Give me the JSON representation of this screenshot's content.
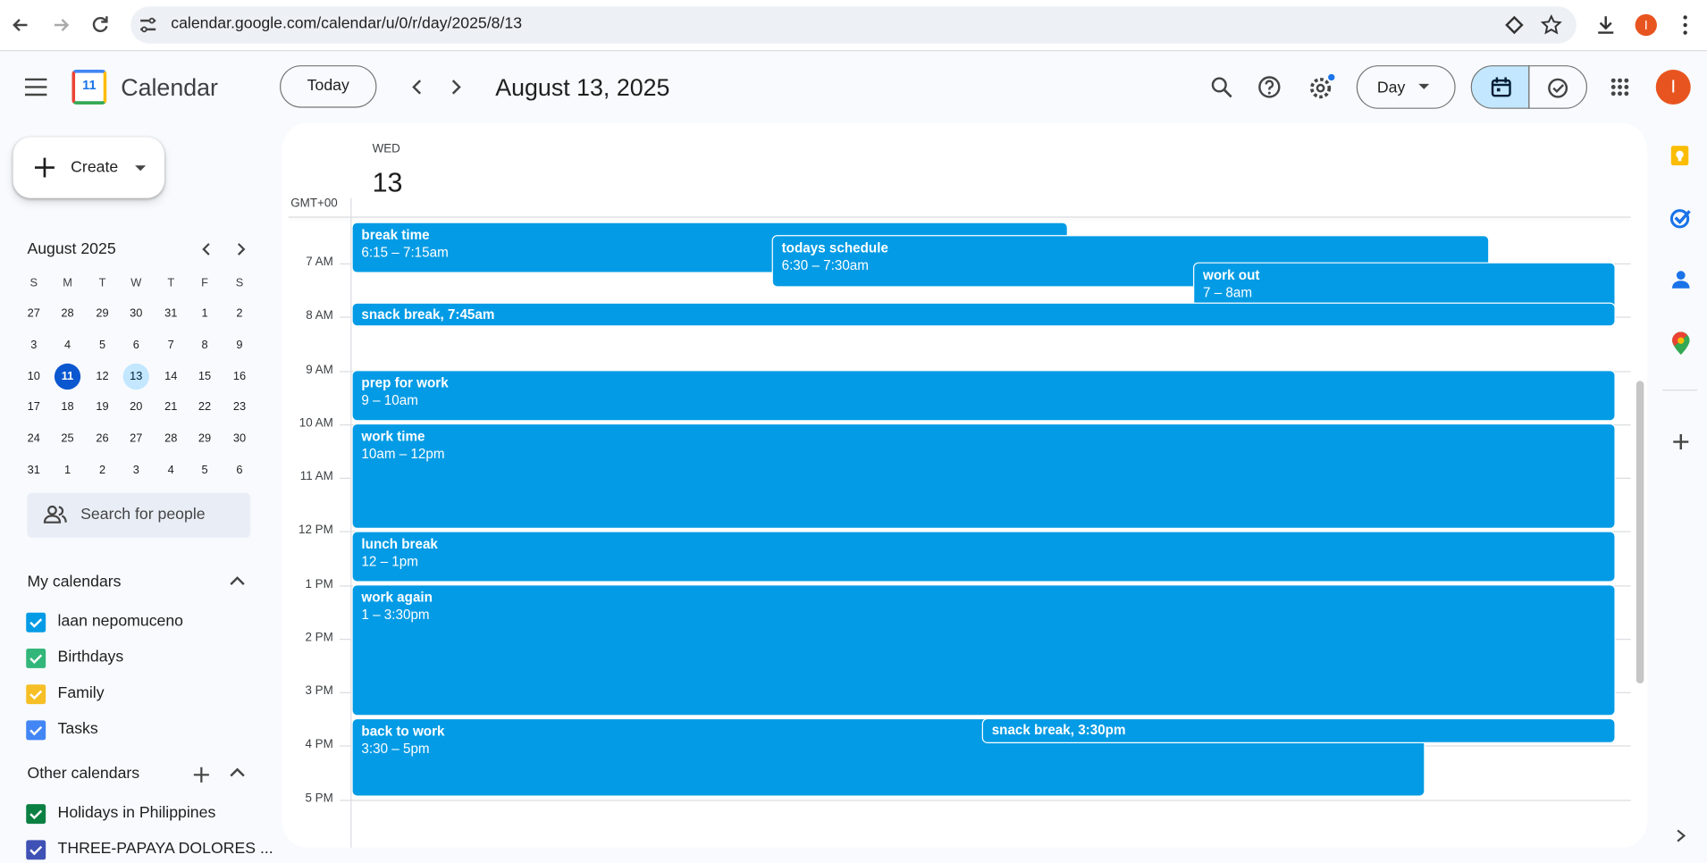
{
  "browser": {
    "url": "calendar.google.com/calendar/u/0/r/day/2025/8/13",
    "avatar": "I"
  },
  "header": {
    "logo_day": "11",
    "app_name": "Calendar",
    "today_button": "Today",
    "date_title": "August 13, 2025",
    "view_button": "Day",
    "avatar": "I"
  },
  "sidebar": {
    "create": "Create",
    "mini_calendar": {
      "month": "August 2025",
      "weekdays": [
        "S",
        "M",
        "T",
        "W",
        "T",
        "F",
        "S"
      ],
      "weeks": [
        [
          "27",
          "28",
          "29",
          "30",
          "31",
          "1",
          "2"
        ],
        [
          "3",
          "4",
          "5",
          "6",
          "7",
          "8",
          "9"
        ],
        [
          "10",
          "11",
          "12",
          "13",
          "14",
          "15",
          "16"
        ],
        [
          "17",
          "18",
          "19",
          "20",
          "21",
          "22",
          "23"
        ],
        [
          "24",
          "25",
          "26",
          "27",
          "28",
          "29",
          "30"
        ],
        [
          "31",
          "1",
          "2",
          "3",
          "4",
          "5",
          "6"
        ]
      ]
    },
    "search_people": "Search for people",
    "my_calendars": {
      "title": "My calendars",
      "items": [
        {
          "name": "laan nepomuceno",
          "color": "#039be5"
        },
        {
          "name": "Birthdays",
          "color": "#33b679"
        },
        {
          "name": "Family",
          "color": "#f6bf26"
        },
        {
          "name": "Tasks",
          "color": "#4285f4"
        }
      ]
    },
    "other_calendars": {
      "title": "Other calendars",
      "items": [
        {
          "name": "Holidays in Philippines",
          "color": "#0b8043"
        },
        {
          "name": "THREE-PAPAYA DOLORES ...",
          "color": "#3f51b5"
        }
      ]
    }
  },
  "day_view": {
    "weekday": "WED",
    "day": "13",
    "timezone": "GMT+00",
    "hours": [
      "7 AM",
      "8 AM",
      "9 AM",
      "10 AM",
      "11 AM",
      "12 PM",
      "1 PM",
      "2 PM",
      "3 PM",
      "4 PM",
      "5 PM"
    ],
    "event_color": "#039be5",
    "events": [
      {
        "title": "break time",
        "time": "6:15 – 7:15am"
      },
      {
        "title": "todays schedule",
        "time": "6:30 – 7:30am"
      },
      {
        "title": "work out",
        "time": "7 – 8am"
      },
      {
        "title": "snack break, 7:45am"
      },
      {
        "title": "prep for work",
        "time": "9 – 10am"
      },
      {
        "title": "work time",
        "time": "10am – 12pm"
      },
      {
        "title": "lunch break",
        "time": "12 – 1pm"
      },
      {
        "title": "work again",
        "time": "1 – 3:30pm"
      },
      {
        "title": "back to work",
        "time": "3:30 – 5pm"
      },
      {
        "title": "snack break, 3:30pm"
      }
    ]
  }
}
